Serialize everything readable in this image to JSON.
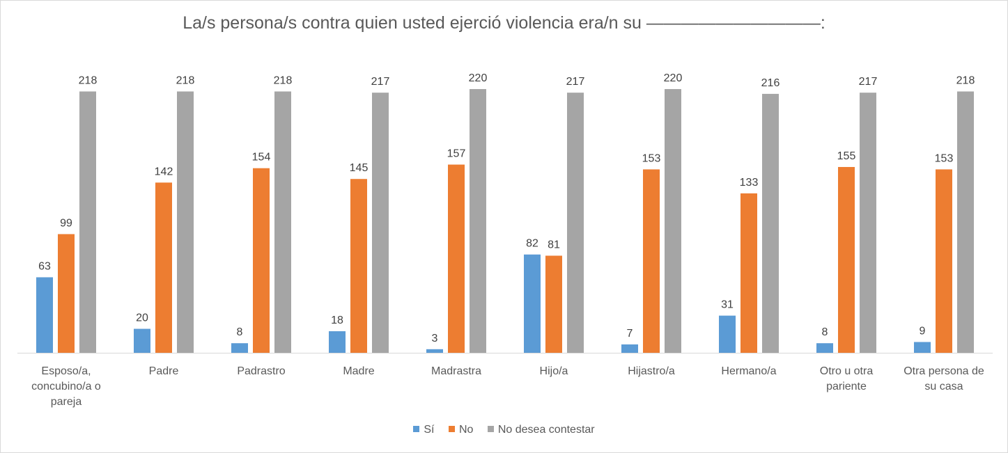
{
  "chart_data": {
    "type": "bar",
    "title": "La/s persona/s contra quien usted ejerció violencia era/n su ——————————:",
    "categories": [
      [
        "Esposo/a,",
        "concubino/a o",
        "pareja"
      ],
      [
        "Padre"
      ],
      [
        "Padrastro"
      ],
      [
        "Madre"
      ],
      [
        "Madrastra"
      ],
      [
        "Hijo/a"
      ],
      [
        "Hijastro/a"
      ],
      [
        "Hermano/a"
      ],
      [
        "Otro u otra",
        "pariente"
      ],
      [
        "Otra persona de",
        "su casa"
      ]
    ],
    "series": [
      {
        "name": "Sí",
        "color": "#5b9bd5",
        "values": [
          63,
          20,
          8,
          18,
          3,
          82,
          7,
          31,
          8,
          9
        ]
      },
      {
        "name": "No",
        "color": "#ed7d31",
        "values": [
          99,
          142,
          154,
          145,
          157,
          81,
          153,
          133,
          155,
          153
        ]
      },
      {
        "name": "No desea contestar",
        "color": "#a5a5a5",
        "values": [
          218,
          218,
          218,
          217,
          220,
          217,
          220,
          216,
          217,
          218
        ]
      }
    ],
    "ylim": [
      0,
      220
    ],
    "grid": false,
    "legend_position": "bottom",
    "data_labels": true
  }
}
